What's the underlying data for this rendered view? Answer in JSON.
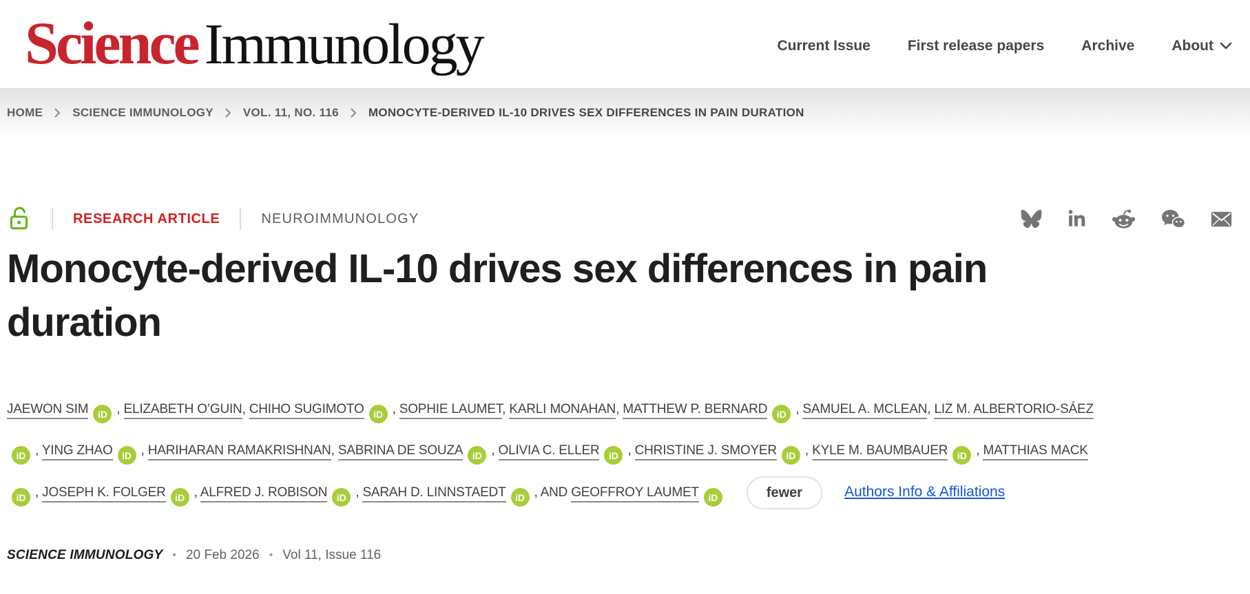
{
  "header": {
    "logo": {
      "science": "Science",
      "journal": "Immunology"
    },
    "nav": [
      {
        "label": "Current Issue",
        "dropdown": false
      },
      {
        "label": "First release papers",
        "dropdown": false
      },
      {
        "label": "Archive",
        "dropdown": false
      },
      {
        "label": "About",
        "dropdown": true
      }
    ]
  },
  "breadcrumb": [
    {
      "label": "HOME"
    },
    {
      "label": "SCIENCE IMMUNOLOGY"
    },
    {
      "label": "VOL. 11, NO. 116"
    },
    {
      "label": "MONOCYTE-DERIVED IL-10 DRIVES SEX DIFFERENCES IN PAIN DURATION"
    }
  ],
  "article": {
    "access_icon": "open-access-lock",
    "type_label": "RESEARCH ARTICLE",
    "section_label": "NEUROIMMUNOLOGY",
    "share_icons": [
      "bluesky",
      "linkedin",
      "reddit",
      "wechat",
      "email"
    ],
    "title": "Monocyte-derived IL-10 drives sex differences in pain\nduration"
  },
  "authors": {
    "list": [
      {
        "name": "JAEWON SIM",
        "orcid": true
      },
      {
        "name": "ELIZABETH O’GUIN",
        "orcid": false
      },
      {
        "name": "CHIHO SUGIMOTO",
        "orcid": true
      },
      {
        "name": "SOPHIE LAUMET",
        "orcid": false
      },
      {
        "name": "KARLI MONAHAN",
        "orcid": false
      },
      {
        "name": "MATTHEW P. BERNARD",
        "orcid": true
      },
      {
        "name": "SAMUEL A. MCLEAN",
        "orcid": false
      },
      {
        "name": "LIZ M. ALBERTORIO-SÁEZ",
        "orcid": true
      },
      {
        "name": "YING ZHAO",
        "orcid": true
      },
      {
        "name": "HARIHARAN RAMAKRISHNAN",
        "orcid": false
      },
      {
        "name": "SABRINA DE SOUZA",
        "orcid": true
      },
      {
        "name": "OLIVIA C. ELLER",
        "orcid": true
      },
      {
        "name": "CHRISTINE J. SMOYER",
        "orcid": true
      },
      {
        "name": "KYLE M. BAUMBAUER",
        "orcid": true
      },
      {
        "name": "MATTHIAS MACK",
        "orcid": true
      },
      {
        "name": "JOSEPH K. FOLGER",
        "orcid": true
      },
      {
        "name": "ALFRED J. ROBISON",
        "orcid": true
      },
      {
        "name": "SARAH D. LINNSTAEDT",
        "orcid": true
      },
      {
        "name": "GEOFFROY LAUMET",
        "orcid": true
      }
    ],
    "and_label": "AND",
    "orcid_badge_text": "iD",
    "fewer_button": "fewer",
    "affiliations_link": "Authors Info & Affiliations"
  },
  "meta": {
    "journal": "SCIENCE IMMUNOLOGY",
    "separator": "•",
    "date": "20 Feb 2026",
    "issue": "Vol 11, Issue 116"
  },
  "colors": {
    "logo_red": "#c9242d",
    "article_type_red": "#d21f1f",
    "open_access_green": "#5fb316",
    "orcid_green": "#a6ce39",
    "link_blue": "#1456d8",
    "icon_gray": "#757575",
    "text_dark": "#1f1f1f",
    "text_gray": "#5e5e5e"
  }
}
